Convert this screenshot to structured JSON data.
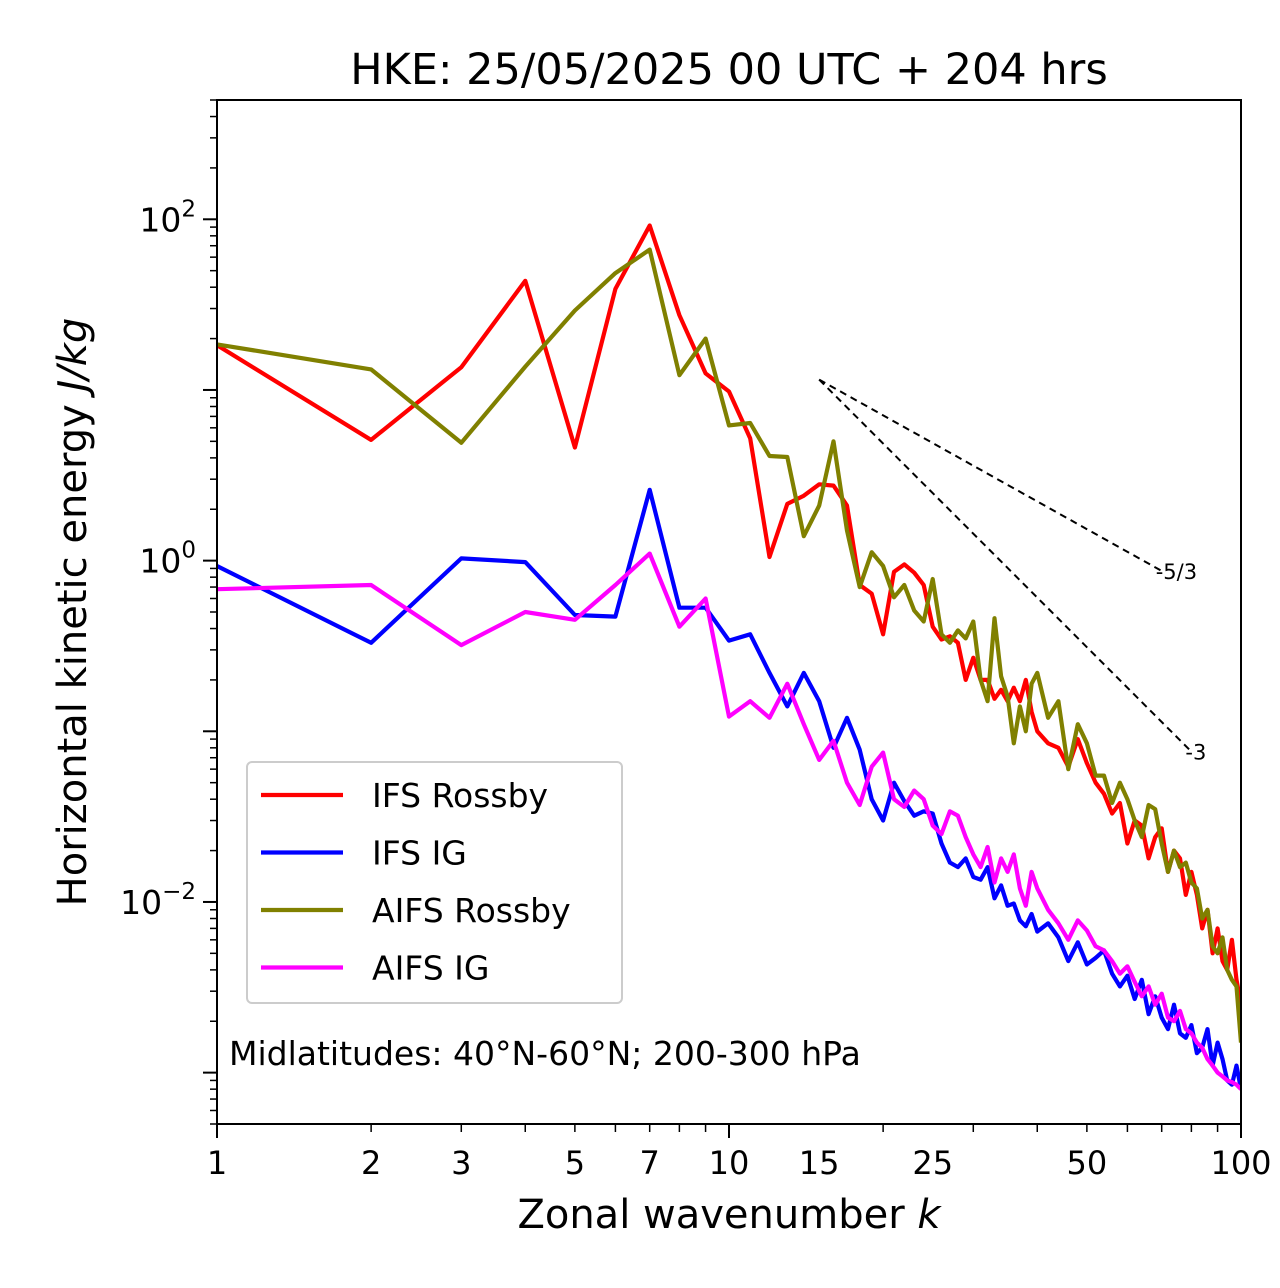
{
  "chart_data": {
    "type": "line",
    "title": "HKE: 25/05/2025 00 UTC + 204 hrs",
    "xlabel": "Zonal wavenumber k",
    "ylabel": "Horizontal kinetic energy J/kg",
    "xscale": "log",
    "yscale": "log",
    "xlim": [
      1,
      100
    ],
    "ylim": [
      0.0005,
      500
    ],
    "x_ticks": [
      1,
      2,
      3,
      5,
      7,
      10,
      15,
      25,
      50,
      100
    ],
    "x_tick_labels": [
      "1",
      "2",
      "3",
      "5",
      "7",
      "10",
      "15",
      "25",
      "50",
      "100"
    ],
    "y_ticks": [
      0.01,
      1,
      100
    ],
    "y_tick_labels": [
      {
        "base": "10",
        "exp": "−2"
      },
      {
        "base": "10",
        "exp": "0"
      },
      {
        "base": "10",
        "exp": "2"
      }
    ],
    "grid": false,
    "legend_position": "lower-left",
    "annotation": "Midlatitudes: 40°N-60°N; 200-300 hPa",
    "reference_lines": [
      {
        "label": "-5/3",
        "slope": -1.6667,
        "x": [
          15,
          70
        ],
        "y": [
          11.5,
          0.87
        ],
        "label_x": 70,
        "label_y": 0.87,
        "color": "#000000"
      },
      {
        "label": "-3",
        "slope": -3,
        "x": [
          15,
          80
        ],
        "y": [
          11.5,
          0.076
        ],
        "label_x": 80,
        "label_y": 0.076,
        "color": "#000000"
      }
    ],
    "series": [
      {
        "name": "IFS Rossby",
        "color": "#ff0000",
        "x": [
          1,
          2,
          3,
          4,
          5,
          6,
          7,
          8,
          9,
          10,
          11,
          12,
          13,
          14,
          15,
          16,
          17,
          18,
          19,
          20,
          21,
          22,
          23,
          24,
          25,
          26,
          27,
          28,
          29,
          30,
          31,
          32,
          33,
          34,
          35,
          36,
          37,
          38,
          39,
          40,
          42,
          44,
          46,
          48,
          50,
          52,
          54,
          56,
          58,
          60,
          62,
          64,
          66,
          68,
          70,
          72,
          74,
          76,
          78,
          80,
          82,
          84,
          86,
          88,
          90,
          92,
          94,
          96,
          98,
          100
        ],
        "y": [
          18.3,
          5.1,
          13.6,
          43.6,
          4.6,
          39.1,
          92,
          27.4,
          12.5,
          9.8,
          5.2,
          1.05,
          2.15,
          2.4,
          2.8,
          2.75,
          2.1,
          0.72,
          0.64,
          0.37,
          0.86,
          0.95,
          0.85,
          0.72,
          0.41,
          0.345,
          0.36,
          0.33,
          0.2,
          0.27,
          0.2,
          0.2,
          0.155,
          0.175,
          0.15,
          0.18,
          0.15,
          0.2,
          0.13,
          0.1,
          0.085,
          0.08,
          0.062,
          0.09,
          0.065,
          0.05,
          0.043,
          0.033,
          0.038,
          0.022,
          0.03,
          0.028,
          0.018,
          0.024,
          0.027,
          0.015,
          0.02,
          0.018,
          0.011,
          0.015,
          0.011,
          0.007,
          0.009,
          0.005,
          0.007,
          0.0045,
          0.004,
          0.006,
          0.0035,
          0.0025
        ]
      },
      {
        "name": "IFS IG",
        "color": "#0000ff",
        "x": [
          1,
          2,
          3,
          4,
          5,
          6,
          7,
          8,
          9,
          10,
          11,
          12,
          13,
          14,
          15,
          16,
          17,
          18,
          19,
          20,
          21,
          22,
          23,
          24,
          25,
          26,
          27,
          28,
          29,
          30,
          31,
          32,
          33,
          34,
          35,
          36,
          37,
          38,
          39,
          40,
          42,
          44,
          46,
          48,
          50,
          52,
          54,
          56,
          58,
          60,
          62,
          64,
          66,
          68,
          70,
          72,
          74,
          76,
          78,
          80,
          82,
          84,
          86,
          88,
          90,
          92,
          94,
          96,
          98,
          100
        ],
        "y": [
          0.93,
          0.33,
          1.03,
          0.98,
          0.48,
          0.47,
          2.6,
          0.53,
          0.53,
          0.34,
          0.37,
          0.22,
          0.14,
          0.22,
          0.15,
          0.08,
          0.12,
          0.078,
          0.04,
          0.03,
          0.05,
          0.039,
          0.032,
          0.034,
          0.033,
          0.022,
          0.017,
          0.016,
          0.018,
          0.014,
          0.0135,
          0.016,
          0.0105,
          0.0125,
          0.0095,
          0.0098,
          0.0078,
          0.0072,
          0.0085,
          0.0067,
          0.0075,
          0.0062,
          0.0045,
          0.0058,
          0.0043,
          0.0047,
          0.0052,
          0.0038,
          0.0032,
          0.0037,
          0.0027,
          0.0035,
          0.0022,
          0.0028,
          0.0021,
          0.0018,
          0.0025,
          0.0017,
          0.0016,
          0.0019,
          0.0013,
          0.0014,
          0.0018,
          0.0011,
          0.0015,
          0.0012,
          0.0009,
          0.00085,
          0.0011,
          0.0008
        ]
      },
      {
        "name": "AIFS Rossby",
        "color": "#808000",
        "x": [
          1,
          2,
          3,
          4,
          5,
          6,
          7,
          8,
          9,
          10,
          11,
          12,
          13,
          14,
          15,
          16,
          17,
          18,
          19,
          20,
          21,
          22,
          23,
          24,
          25,
          26,
          27,
          28,
          29,
          30,
          31,
          32,
          33,
          34,
          35,
          36,
          37,
          38,
          39,
          40,
          42,
          44,
          46,
          48,
          50,
          52,
          54,
          56,
          58,
          60,
          62,
          64,
          66,
          68,
          70,
          72,
          74,
          76,
          78,
          80,
          82,
          84,
          86,
          88,
          90,
          92,
          94,
          96,
          98,
          100
        ],
        "y": [
          18.5,
          13.2,
          4.9,
          13.7,
          29.2,
          48.4,
          66.4,
          12.2,
          20,
          6.2,
          6.4,
          4.1,
          4.05,
          1.39,
          2.1,
          5.0,
          1.5,
          0.7,
          1.12,
          0.93,
          0.61,
          0.72,
          0.51,
          0.44,
          0.78,
          0.37,
          0.33,
          0.39,
          0.35,
          0.44,
          0.2,
          0.15,
          0.46,
          0.21,
          0.16,
          0.085,
          0.14,
          0.1,
          0.19,
          0.22,
          0.12,
          0.15,
          0.06,
          0.11,
          0.085,
          0.055,
          0.055,
          0.038,
          0.05,
          0.04,
          0.03,
          0.024,
          0.037,
          0.035,
          0.022,
          0.015,
          0.02,
          0.016,
          0.017,
          0.013,
          0.012,
          0.008,
          0.009,
          0.0055,
          0.005,
          0.0062,
          0.004,
          0.0035,
          0.0032,
          0.0015
        ]
      },
      {
        "name": "AIFS IG",
        "color": "#ff00ff",
        "x": [
          1,
          2,
          3,
          4,
          5,
          6,
          7,
          8,
          9,
          10,
          11,
          12,
          13,
          14,
          15,
          16,
          17,
          18,
          19,
          20,
          21,
          22,
          23,
          24,
          25,
          26,
          27,
          28,
          29,
          30,
          31,
          32,
          33,
          34,
          35,
          36,
          37,
          38,
          39,
          40,
          42,
          44,
          46,
          48,
          50,
          52,
          54,
          56,
          58,
          60,
          62,
          64,
          66,
          68,
          70,
          72,
          74,
          76,
          78,
          80,
          82,
          84,
          86,
          88,
          90,
          92,
          94,
          96,
          98,
          100
        ],
        "y": [
          0.68,
          0.72,
          0.32,
          0.5,
          0.45,
          0.72,
          1.1,
          0.41,
          0.6,
          0.122,
          0.15,
          0.12,
          0.19,
          0.11,
          0.068,
          0.088,
          0.05,
          0.037,
          0.062,
          0.075,
          0.04,
          0.036,
          0.045,
          0.04,
          0.028,
          0.025,
          0.034,
          0.032,
          0.024,
          0.019,
          0.016,
          0.021,
          0.013,
          0.018,
          0.015,
          0.019,
          0.012,
          0.0095,
          0.015,
          0.012,
          0.009,
          0.0075,
          0.006,
          0.0078,
          0.0068,
          0.0055,
          0.0052,
          0.0045,
          0.0038,
          0.0042,
          0.0034,
          0.0028,
          0.0032,
          0.0025,
          0.0029,
          0.0021,
          0.002,
          0.0023,
          0.0018,
          0.0017,
          0.0015,
          0.0014,
          0.0012,
          0.0011,
          0.001,
          0.00095,
          0.0009,
          0.00088,
          0.00085,
          0.0008
        ]
      }
    ]
  }
}
